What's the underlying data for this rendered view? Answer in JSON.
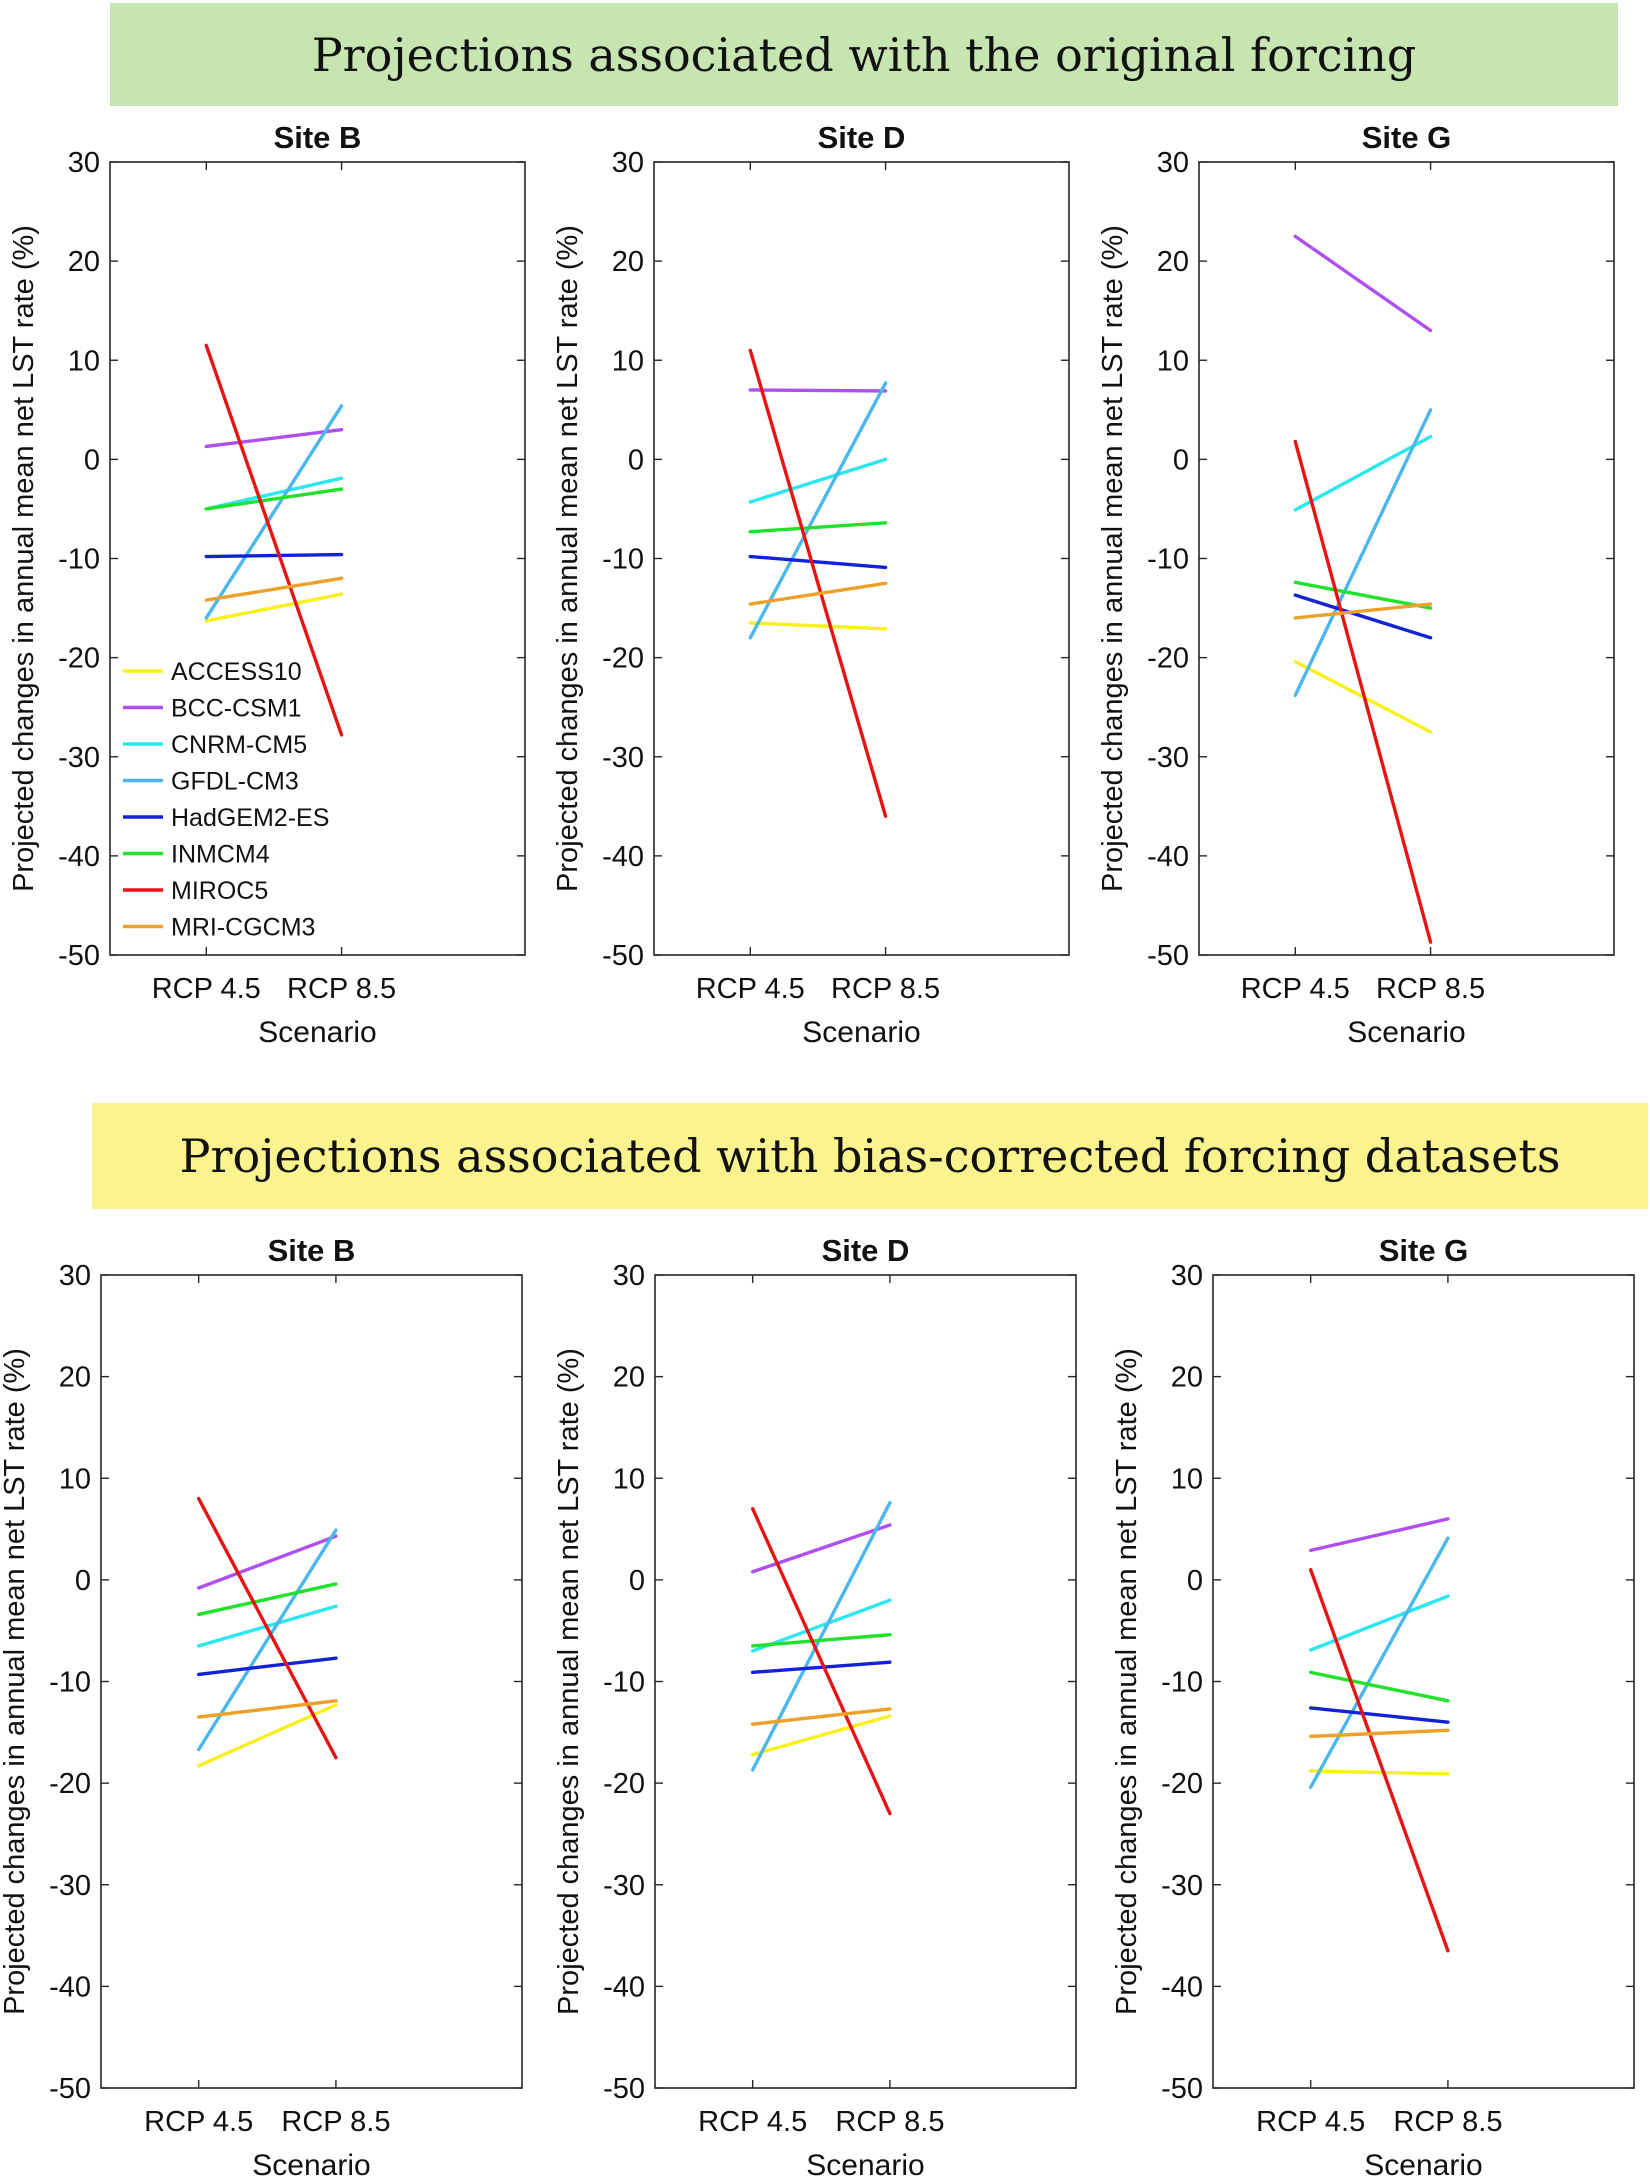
{
  "banners": {
    "top": "Projections associated with the original forcing",
    "bottom": "Projections associated with bias-corrected forcing datasets"
  },
  "models": [
    {
      "name": "ACCESS10",
      "color": "#f7f01a"
    },
    {
      "name": "BCC-CSM1",
      "color": "#b04ff0"
    },
    {
      "name": "CNRM-CM5",
      "color": "#2ae8ee"
    },
    {
      "name": "GFDL-CM3",
      "color": "#4bb7ee"
    },
    {
      "name": "HadGEM2-ES",
      "color": "#1322d6"
    },
    {
      "name": "INMCM4",
      "color": "#22e12a"
    },
    {
      "name": "MIROC5",
      "color": "#e81414"
    },
    {
      "name": "MRI-CGCM3",
      "color": "#eda12b"
    }
  ],
  "chart_data": [
    {
      "type": "line",
      "title": "Site B",
      "xlabel": "Scenario",
      "ylabel": "Projected changes in annual mean net LST rate (%)",
      "categories": [
        "RCP 4.5",
        "RCP 8.5"
      ],
      "ylim": [
        -50,
        30
      ],
      "yticks": [
        "30",
        "20",
        "10",
        "0",
        "-10",
        "-20",
        "-30",
        "-40",
        "-50"
      ],
      "legend": "lower-left",
      "series": [
        {
          "name": "ACCESS10",
          "values": [
            -16.3,
            -13.6
          ]
        },
        {
          "name": "BCC-CSM1",
          "values": [
            1.3,
            3.0
          ]
        },
        {
          "name": "CNRM-CM5",
          "values": [
            -5.0,
            -1.9
          ]
        },
        {
          "name": "GFDL-CM3",
          "values": [
            -16.0,
            5.4
          ]
        },
        {
          "name": "HadGEM2-ES",
          "values": [
            -9.8,
            -9.6
          ]
        },
        {
          "name": "INMCM4",
          "values": [
            -5.0,
            -3.0
          ]
        },
        {
          "name": "MIROC5",
          "values": [
            11.5,
            -27.8
          ]
        },
        {
          "name": "MRI-CGCM3",
          "values": [
            -14.2,
            -12.0
          ]
        }
      ]
    },
    {
      "type": "line",
      "title": "Site D",
      "xlabel": "Scenario",
      "ylabel": "Projected changes in annual mean net LST rate (%)",
      "categories": [
        "RCP 4.5",
        "RCP 8.5"
      ],
      "ylim": [
        -50,
        30
      ],
      "yticks": [
        "30",
        "20",
        "10",
        "0",
        "-10",
        "-20",
        "-30",
        "-40",
        "-50"
      ],
      "series": [
        {
          "name": "ACCESS10",
          "values": [
            -16.5,
            -17.1
          ]
        },
        {
          "name": "BCC-CSM1",
          "values": [
            7.0,
            6.9
          ]
        },
        {
          "name": "CNRM-CM5",
          "values": [
            -4.3,
            0.0
          ]
        },
        {
          "name": "GFDL-CM3",
          "values": [
            -18.0,
            7.7
          ]
        },
        {
          "name": "HadGEM2-ES",
          "values": [
            -9.8,
            -10.9
          ]
        },
        {
          "name": "INMCM4",
          "values": [
            -7.3,
            -6.4
          ]
        },
        {
          "name": "MIROC5",
          "values": [
            11.0,
            -36.0
          ]
        },
        {
          "name": "MRI-CGCM3",
          "values": [
            -14.6,
            -12.5
          ]
        }
      ]
    },
    {
      "type": "line",
      "title": "Site G",
      "xlabel": "Scenario",
      "ylabel": "Projected changes in annual mean net LST rate (%)",
      "categories": [
        "RCP 4.5",
        "RCP 8.5"
      ],
      "ylim": [
        -50,
        30
      ],
      "yticks": [
        "30",
        "20",
        "10",
        "0",
        "-10",
        "-20",
        "-30",
        "-40",
        "-50"
      ],
      "series": [
        {
          "name": "ACCESS10",
          "values": [
            -20.4,
            -27.5
          ]
        },
        {
          "name": "BCC-CSM1",
          "values": [
            22.5,
            13.0
          ]
        },
        {
          "name": "CNRM-CM5",
          "values": [
            -5.1,
            2.3
          ]
        },
        {
          "name": "GFDL-CM3",
          "values": [
            -23.8,
            5.0
          ]
        },
        {
          "name": "HadGEM2-ES",
          "values": [
            -13.7,
            -18.0
          ]
        },
        {
          "name": "INMCM4",
          "values": [
            -12.4,
            -15.0
          ]
        },
        {
          "name": "MIROC5",
          "values": [
            1.8,
            -48.7
          ]
        },
        {
          "name": "MRI-CGCM3",
          "values": [
            -16.0,
            -14.6
          ]
        }
      ]
    },
    {
      "type": "line",
      "title": "Site B",
      "xlabel": "Scenario",
      "ylabel": "Projected changes in annual mean net LST rate (%)",
      "categories": [
        "RCP 4.5",
        "RCP 8.5"
      ],
      "ylim": [
        -50,
        30
      ],
      "yticks": [
        "30",
        "20",
        "10",
        "0",
        "-10",
        "-20",
        "-30",
        "-40",
        "-50"
      ],
      "series": [
        {
          "name": "ACCESS10",
          "values": [
            -18.3,
            -12.3
          ]
        },
        {
          "name": "BCC-CSM1",
          "values": [
            -0.8,
            4.3
          ]
        },
        {
          "name": "CNRM-CM5",
          "values": [
            -6.5,
            -2.6
          ]
        },
        {
          "name": "GFDL-CM3",
          "values": [
            -16.7,
            4.9
          ]
        },
        {
          "name": "HadGEM2-ES",
          "values": [
            -9.3,
            -7.7
          ]
        },
        {
          "name": "INMCM4",
          "values": [
            -3.4,
            -0.4
          ]
        },
        {
          "name": "MIROC5",
          "values": [
            8.0,
            -17.5
          ]
        },
        {
          "name": "MRI-CGCM3",
          "values": [
            -13.5,
            -11.9
          ]
        }
      ]
    },
    {
      "type": "line",
      "title": "Site D",
      "xlabel": "Scenario",
      "ylabel": "Projected changes in annual mean net LST rate (%)",
      "categories": [
        "RCP 4.5",
        "RCP 8.5"
      ],
      "ylim": [
        -50,
        30
      ],
      "yticks": [
        "30",
        "20",
        "10",
        "0",
        "-10",
        "-20",
        "-30",
        "-40",
        "-50"
      ],
      "series": [
        {
          "name": "ACCESS10",
          "values": [
            -17.2,
            -13.4
          ]
        },
        {
          "name": "BCC-CSM1",
          "values": [
            0.8,
            5.4
          ]
        },
        {
          "name": "CNRM-CM5",
          "values": [
            -7.0,
            -2.0
          ]
        },
        {
          "name": "GFDL-CM3",
          "values": [
            -18.7,
            7.6
          ]
        },
        {
          "name": "HadGEM2-ES",
          "values": [
            -9.1,
            -8.1
          ]
        },
        {
          "name": "INMCM4",
          "values": [
            -6.5,
            -5.4
          ]
        },
        {
          "name": "MIROC5",
          "values": [
            7.0,
            -23.0
          ]
        },
        {
          "name": "MRI-CGCM3",
          "values": [
            -14.2,
            -12.7
          ]
        }
      ]
    },
    {
      "type": "line",
      "title": "Site G",
      "xlabel": "Scenario",
      "ylabel": "Projected changes in annual mean net LST rate (%)",
      "categories": [
        "RCP 4.5",
        "RCP 8.5"
      ],
      "ylim": [
        -50,
        30
      ],
      "yticks": [
        "30",
        "20",
        "10",
        "0",
        "-10",
        "-20",
        "-30",
        "-40",
        "-50"
      ],
      "series": [
        {
          "name": "ACCESS10",
          "values": [
            -18.8,
            -19.1
          ]
        },
        {
          "name": "BCC-CSM1",
          "values": [
            2.9,
            6.0
          ]
        },
        {
          "name": "CNRM-CM5",
          "values": [
            -6.9,
            -1.6
          ]
        },
        {
          "name": "GFDL-CM3",
          "values": [
            -20.4,
            4.1
          ]
        },
        {
          "name": "HadGEM2-ES",
          "values": [
            -12.6,
            -14.0
          ]
        },
        {
          "name": "INMCM4",
          "values": [
            -9.1,
            -11.9
          ]
        },
        {
          "name": "MIROC5",
          "values": [
            1.0,
            -36.5
          ]
        },
        {
          "name": "MRI-CGCM3",
          "values": [
            -15.4,
            -14.8
          ]
        }
      ]
    }
  ]
}
